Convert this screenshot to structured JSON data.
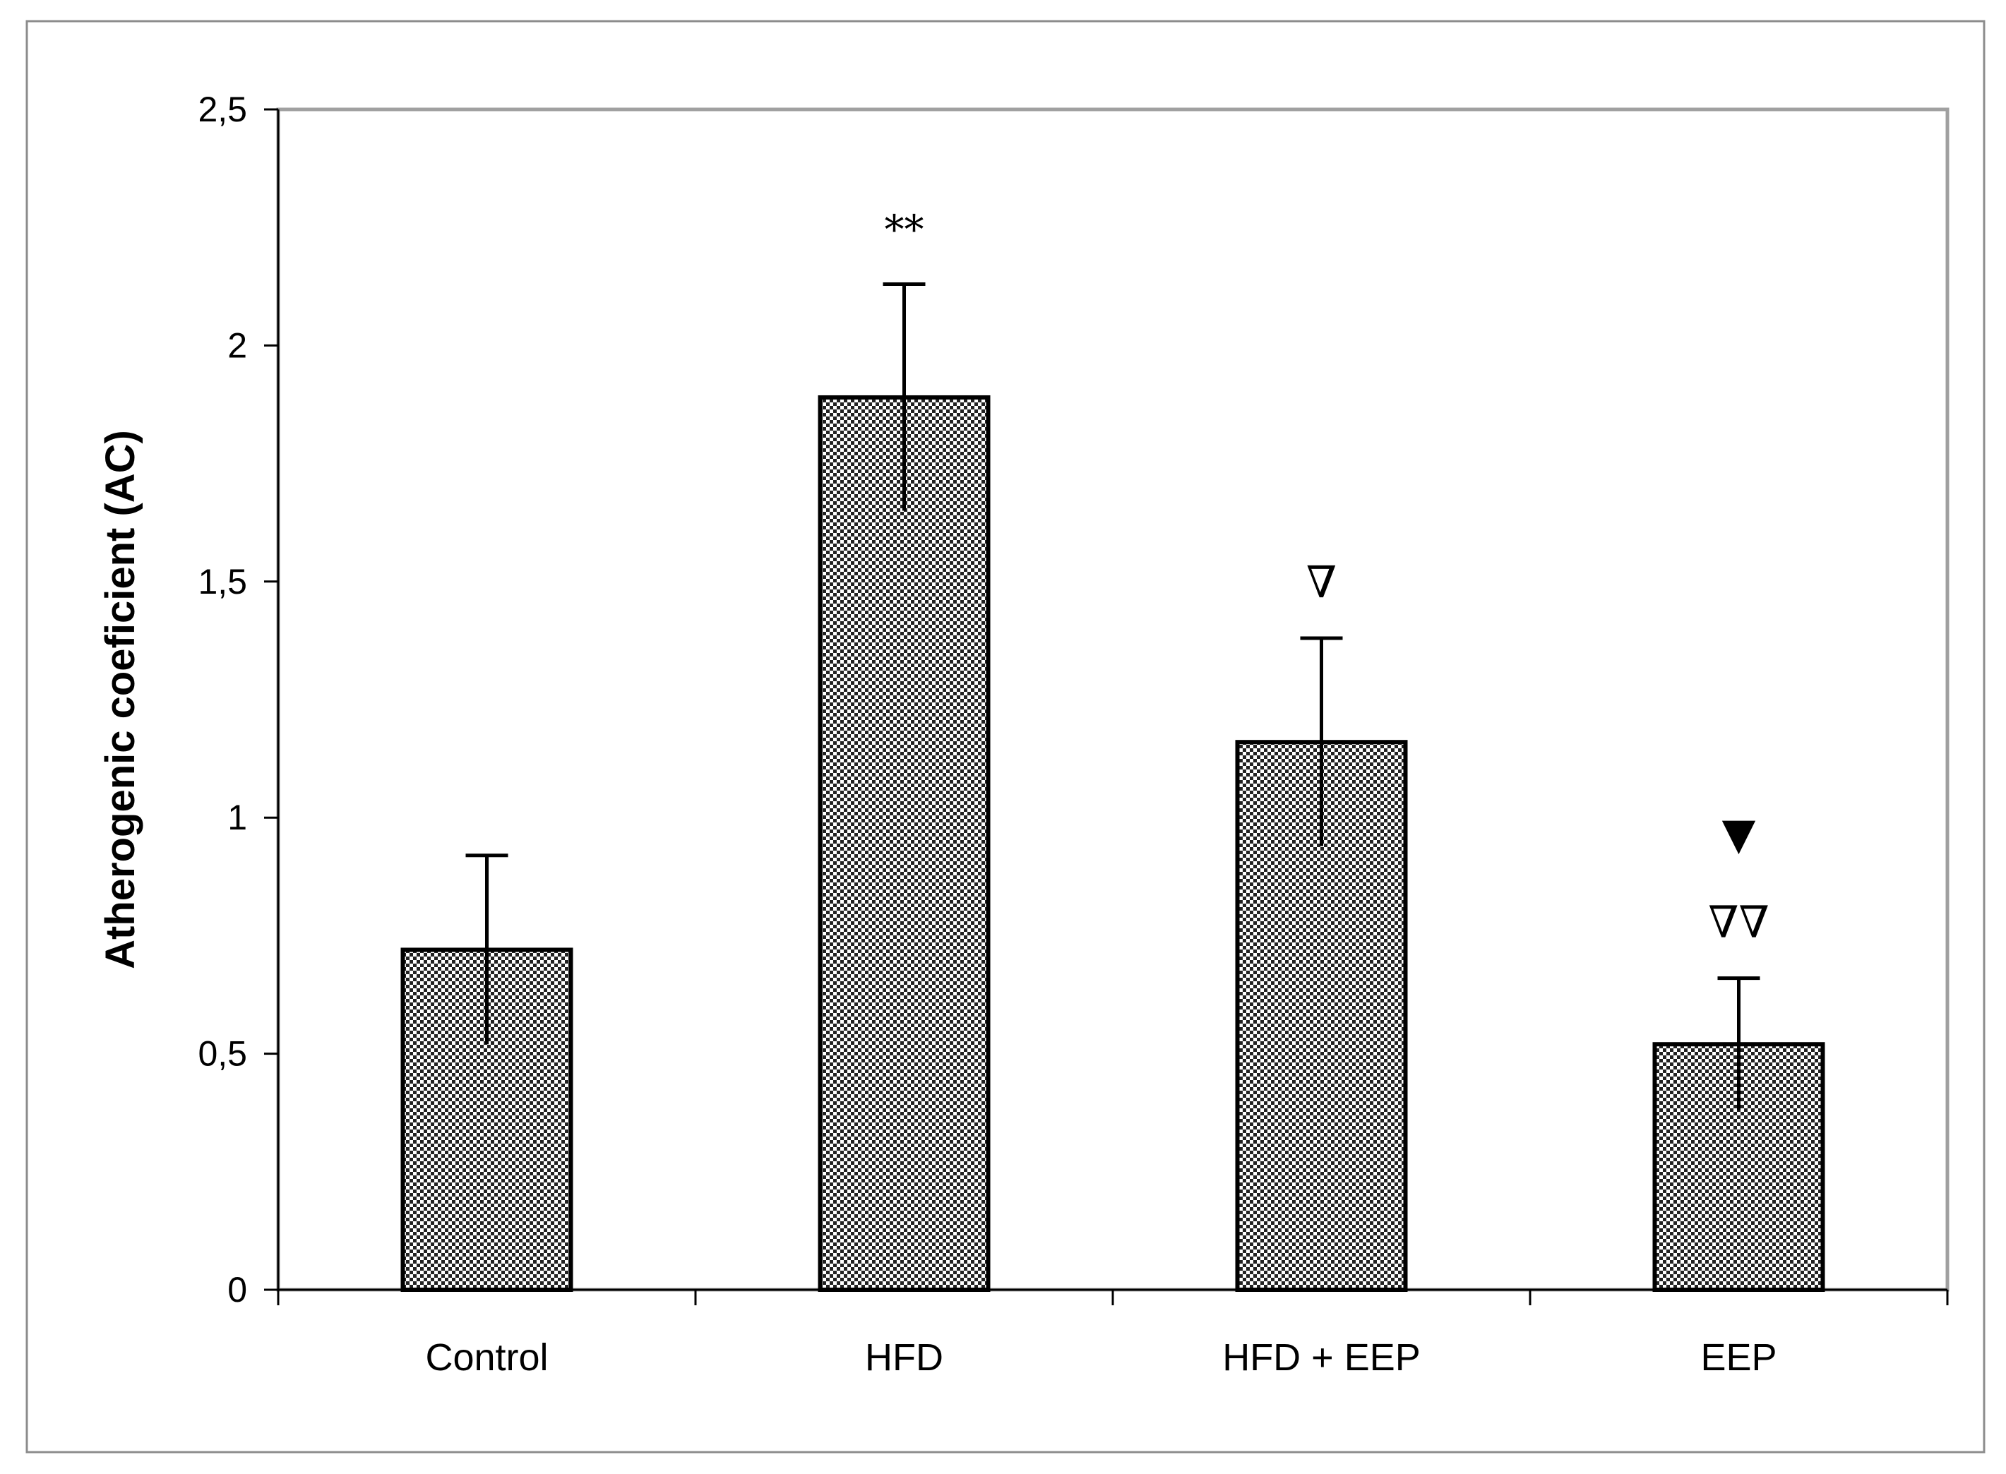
{
  "chart_data": {
    "type": "bar",
    "title": "",
    "xlabel": "",
    "ylabel": "Atherogenic coeficient (AC)",
    "categories": [
      "Control",
      "HFD",
      "HFD + EEP",
      "EEP"
    ],
    "values": [
      0.72,
      1.89,
      1.16,
      0.52
    ],
    "errors": [
      0.2,
      0.24,
      0.22,
      0.14
    ],
    "annotations": [
      [],
      [
        "**"
      ],
      [
        "∇"
      ],
      [
        "∇∇",
        "▼"
      ]
    ],
    "ylim": [
      0,
      2.5
    ],
    "yticks": [
      0,
      0.5,
      1,
      1.5,
      2,
      2.5
    ],
    "ytick_labels": [
      "0",
      "0,5",
      "1",
      "1,5",
      "2",
      "2,5"
    ],
    "bar_pattern": "checkered",
    "bar_colors": [
      "#000000",
      "#ffffff"
    ],
    "grid": false,
    "legend": "none"
  }
}
